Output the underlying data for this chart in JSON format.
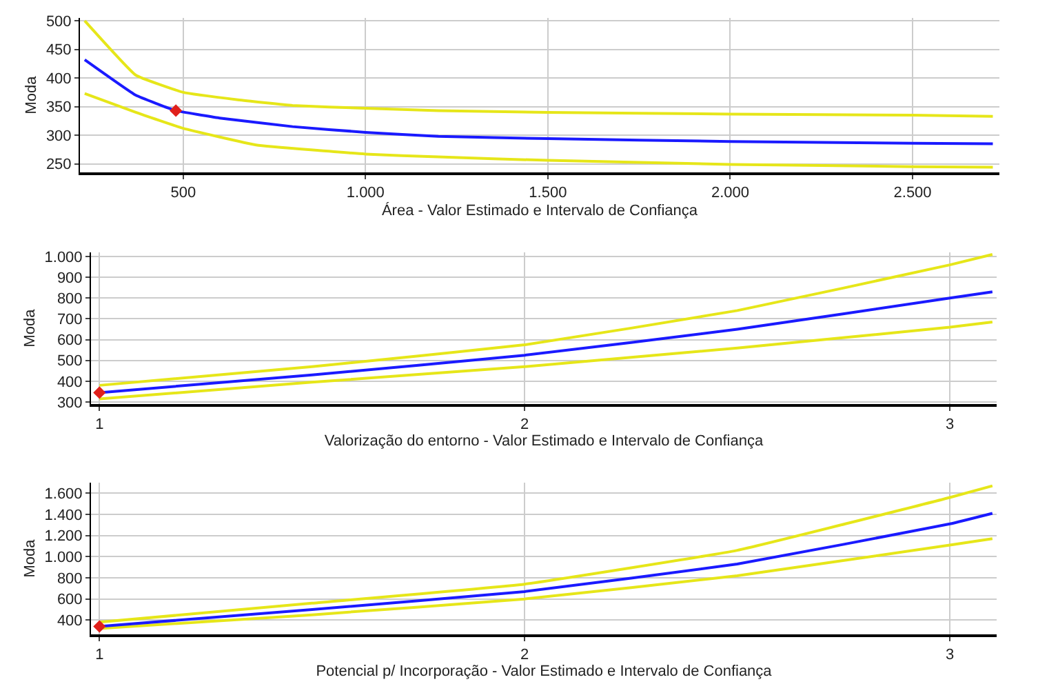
{
  "chart_data": [
    {
      "type": "line",
      "xlabel": "Área - Valor Estimado e Intervalo de Confiança",
      "ylabel": "Moda",
      "xlim": [
        217,
        2738
      ],
      "ylim": [
        235,
        505
      ],
      "xticks": [
        {
          "value": 500,
          "label": "500"
        },
        {
          "value": 1000,
          "label": "1.000"
        },
        {
          "value": 1500,
          "label": "1.500"
        },
        {
          "value": 2000,
          "label": "2.000"
        },
        {
          "value": 2500,
          "label": "2.500"
        }
      ],
      "yticks": [
        250,
        300,
        350,
        400,
        450,
        500
      ],
      "grid": true,
      "series": [
        {
          "color": "#e6e619",
          "x": [
            230,
            370,
            500,
            650,
            800,
            1000,
            1200,
            1500,
            2000,
            2500,
            2720
          ],
          "values": [
            500,
            405,
            375,
            362,
            352,
            347,
            343,
            340,
            337,
            335,
            333
          ]
        },
        {
          "color": "#e6e619",
          "x": [
            230,
            370,
            500,
            700,
            1000,
            1200,
            1500,
            2000,
            2500,
            2720
          ],
          "values": [
            373,
            340,
            312,
            283,
            267,
            262,
            256,
            249,
            245,
            244
          ]
        },
        {
          "color": "#1a1aff",
          "x": [
            230,
            370,
            480,
            600,
            800,
            1000,
            1200,
            1500,
            2000,
            2500,
            2720
          ],
          "values": [
            432,
            370,
            343,
            330,
            315,
            305,
            298,
            294,
            289,
            286,
            285
          ]
        },
        {
          "type": "scatter",
          "marker": "diamond",
          "color": "#e0201b",
          "x": [
            480
          ],
          "values": [
            343
          ]
        }
      ]
    },
    {
      "type": "line",
      "xlabel": "Valorização do entorno - Valor Estimado e Intervalo de Confiança",
      "ylabel": "Moda",
      "xlim": [
        0.98,
        3.11
      ],
      "ylim": [
        290,
        1020
      ],
      "xticks": [
        1,
        2,
        3
      ],
      "yticks": [
        300,
        400,
        500,
        600,
        700,
        800,
        900,
        {
          "value": 1000,
          "label": "1.000"
        }
      ],
      "grid": true,
      "series": [
        {
          "color": "#e6e619",
          "x": [
            1,
            1.5,
            2,
            2.5,
            3,
            3.1
          ],
          "values": [
            380,
            470,
            575,
            740,
            960,
            1010
          ]
        },
        {
          "color": "#e6e619",
          "x": [
            1,
            1.5,
            2,
            2.5,
            3,
            3.1
          ],
          "values": [
            315,
            395,
            470,
            560,
            660,
            685
          ]
        },
        {
          "color": "#1a1aff",
          "x": [
            1,
            1.5,
            2,
            2.5,
            3,
            3.1
          ],
          "values": [
            345,
            430,
            525,
            650,
            800,
            830
          ]
        },
        {
          "type": "scatter",
          "marker": "diamond",
          "color": "#e0201b",
          "x": [
            1
          ],
          "values": [
            345
          ]
        }
      ]
    },
    {
      "type": "line",
      "xlabel": "Potencial p/ Incorporação - Valor Estimado e Intervalo de Confiança",
      "ylabel": "Moda",
      "xlim": [
        0.98,
        3.11
      ],
      "ylim": [
        265,
        1700
      ],
      "xticks": [
        1,
        2,
        3
      ],
      "yticks": [
        400,
        600,
        800,
        {
          "value": 1000,
          "label": "1.000"
        },
        {
          "value": 1200,
          "label": "1.200"
        },
        {
          "value": 1400,
          "label": "1.400"
        },
        {
          "value": 1600,
          "label": "1.600"
        }
      ],
      "grid": true,
      "series": [
        {
          "color": "#e6e619",
          "x": [
            1,
            1.5,
            2,
            2.5,
            3,
            3.1
          ],
          "values": [
            380,
            560,
            740,
            1060,
            1560,
            1670
          ]
        },
        {
          "color": "#e6e619",
          "x": [
            1,
            1.5,
            2,
            2.5,
            3,
            3.1
          ],
          "values": [
            320,
            450,
            600,
            820,
            1110,
            1170
          ]
        },
        {
          "color": "#1a1aff",
          "x": [
            1,
            1.5,
            2,
            2.5,
            3,
            3.1
          ],
          "values": [
            340,
            500,
            670,
            930,
            1310,
            1410
          ]
        },
        {
          "type": "scatter",
          "marker": "diamond",
          "color": "#e0201b",
          "x": [
            1
          ],
          "values": [
            340
          ]
        }
      ]
    }
  ]
}
